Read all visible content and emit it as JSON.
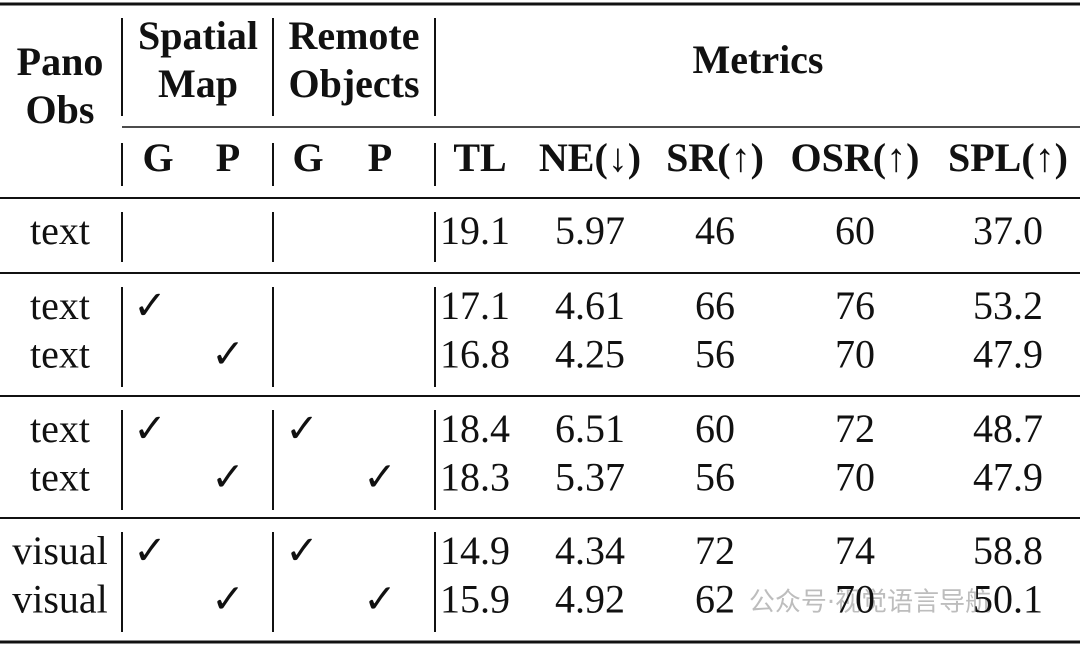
{
  "table": {
    "header": {
      "pano": [
        "Pano",
        "Obs"
      ],
      "spatial": [
        "Spatial",
        "Map"
      ],
      "remote": [
        "Remote",
        "Objects"
      ],
      "metrics": "Metrics",
      "subheaders": [
        "G",
        "P",
        "G",
        "P",
        "TL",
        "NE(↓)",
        "SR(↑)",
        "OSR(↑)",
        "SPL(↑)"
      ]
    },
    "groups": [
      [
        [
          "text",
          null,
          null,
          null,
          null,
          "19.1",
          "5.97",
          "46",
          "60",
          "37.0"
        ]
      ],
      [
        [
          "text",
          "✓",
          null,
          null,
          null,
          "17.1",
          "4.61",
          "66",
          "76",
          "53.2"
        ],
        [
          "text",
          null,
          "✓",
          null,
          null,
          "16.8",
          "4.25",
          "56",
          "70",
          "47.9"
        ]
      ],
      [
        [
          "text",
          "✓",
          null,
          "✓",
          null,
          "18.4",
          "6.51",
          "60",
          "72",
          "48.7"
        ],
        [
          "text",
          null,
          "✓",
          null,
          "✓",
          "18.3",
          "5.37",
          "56",
          "70",
          "47.9"
        ]
      ],
      [
        [
          "visual",
          "✓",
          null,
          "✓",
          null,
          "14.9",
          "4.34",
          "72",
          "74",
          "58.8"
        ],
        [
          "visual",
          null,
          "✓",
          null,
          "✓",
          "15.9",
          "4.92",
          "62",
          "70",
          "50.1"
        ]
      ]
    ],
    "watermark": "公众号·视觉语言导航"
  }
}
